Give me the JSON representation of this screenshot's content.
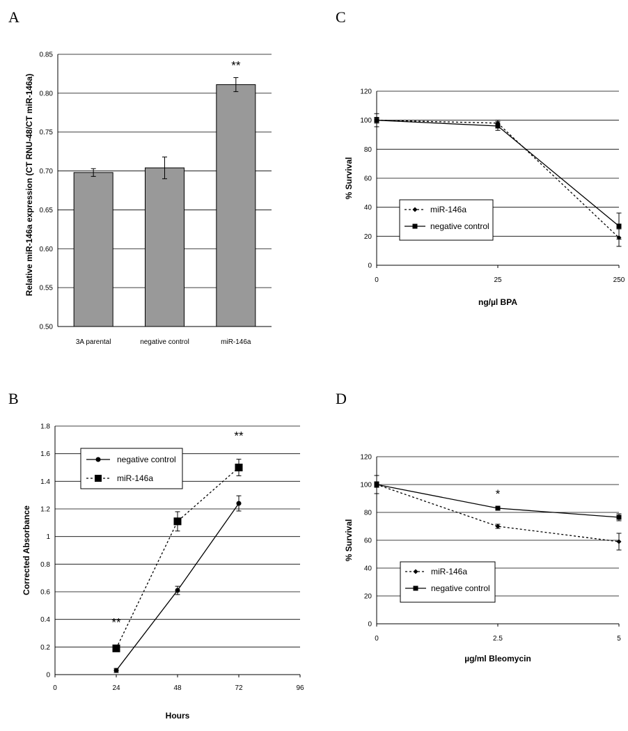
{
  "chart_data": [
    {
      "panel": "A",
      "type": "bar",
      "categories": [
        "3A parental",
        "negative control",
        "miR-146a"
      ],
      "values": [
        0.698,
        0.704,
        0.811
      ],
      "errors": [
        0.005,
        0.014,
        0.009
      ],
      "ylabel": "Relative miR-146a expression (CT RNU-48/CT miR-146a)",
      "xlabel": "",
      "ylim": [
        0.5,
        0.85
      ],
      "yticks": [
        "0.50",
        "0.55",
        "0.60",
        "0.65",
        "0.70",
        "0.75",
        "0.80",
        "0.85"
      ],
      "annotations": [
        "",
        "",
        "**"
      ],
      "bar_color": "#999999",
      "grid": true
    },
    {
      "panel": "B",
      "type": "line",
      "x": [
        24,
        48,
        72
      ],
      "xlim": [
        0,
        96
      ],
      "xticks": [
        "0",
        "24",
        "48",
        "72",
        "96"
      ],
      "ylim": [
        0,
        1.8
      ],
      "yticks": [
        "0",
        "0.2",
        "0.4",
        "0.6",
        "0.8",
        "1",
        "1.2",
        "1.4",
        "1.6",
        "1.8"
      ],
      "xlabel": "Hours",
      "ylabel": "Corrected Absorbance",
      "series": [
        {
          "name": "negative control",
          "values": [
            0.03,
            0.61,
            1.24
          ],
          "errors": [
            0.015,
            0.03,
            0.055
          ],
          "marker": "circle",
          "dash": "solid"
        },
        {
          "name": "miR-146a",
          "values": [
            0.19,
            1.11,
            1.5
          ],
          "errors": [
            0.02,
            0.07,
            0.06
          ],
          "marker": "square",
          "dash": "dotted"
        }
      ],
      "annotations": [
        "**",
        "**",
        "**"
      ],
      "legend": "top-left",
      "grid": true
    },
    {
      "panel": "C",
      "type": "line",
      "categories": [
        "0",
        "25",
        "250"
      ],
      "ylim": [
        0,
        120
      ],
      "yticks": [
        "0",
        "20",
        "40",
        "60",
        "80",
        "100",
        "120"
      ],
      "xlabel": "ng/µl BPA",
      "ylabel": "% Survival",
      "series": [
        {
          "name": "miR-146a",
          "values": [
            100,
            98,
            19
          ],
          "errors": [
            2,
            2,
            6
          ],
          "marker": "diamond",
          "dash": "dotted"
        },
        {
          "name": "negative control",
          "values": [
            100,
            96,
            27
          ],
          "errors": [
            4.5,
            3,
            9
          ],
          "marker": "square",
          "dash": "solid"
        }
      ],
      "legend": "left",
      "grid": true
    },
    {
      "panel": "D",
      "type": "line",
      "categories": [
        "0",
        "2.5",
        "5"
      ],
      "ylim": [
        0,
        120
      ],
      "yticks": [
        "0",
        "20",
        "40",
        "60",
        "80",
        "100",
        "120"
      ],
      "xlabel": "µg/ml Bleomycin",
      "ylabel": "% Survival",
      "series": [
        {
          "name": "miR-146a",
          "values": [
            100,
            70,
            59
          ],
          "errors": [
            2,
            1.5,
            6
          ],
          "marker": "diamond",
          "dash": "dotted"
        },
        {
          "name": "negative control",
          "values": [
            100,
            83,
            76.5
          ],
          "errors": [
            6.5,
            1.5,
            2.5
          ],
          "marker": "square",
          "dash": "solid"
        }
      ],
      "annotations": [
        "",
        "*",
        ""
      ],
      "legend": "bottom-left",
      "grid": true
    }
  ]
}
